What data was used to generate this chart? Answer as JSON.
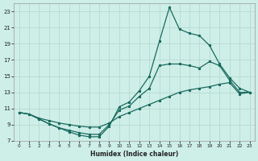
{
  "xlabel": "Humidex (Indice chaleur)",
  "bg_color": "#ceeee8",
  "grid_color": "#b8d8d2",
  "line_color": "#1a6b5e",
  "xlim": [
    -0.5,
    23.5
  ],
  "ylim": [
    7,
    24
  ],
  "yticks": [
    7,
    9,
    11,
    13,
    15,
    17,
    19,
    21,
    23
  ],
  "xticks": [
    0,
    1,
    2,
    3,
    4,
    5,
    6,
    7,
    8,
    9,
    10,
    11,
    12,
    13,
    14,
    15,
    16,
    17,
    18,
    19,
    20,
    21,
    22,
    23
  ],
  "s1_x": [
    0,
    1,
    2,
    3,
    4,
    5,
    6,
    7,
    8,
    9,
    10,
    11,
    12,
    13,
    14,
    15,
    16,
    17,
    18,
    19,
    20,
    21,
    22,
    23
  ],
  "s1_y": [
    10.5,
    10.3,
    9.7,
    9.1,
    8.6,
    8.1,
    7.7,
    7.5,
    7.5,
    8.8,
    11.2,
    11.8,
    13.2,
    15.0,
    19.3,
    23.5,
    20.8,
    20.3,
    20.0,
    18.8,
    16.5,
    14.8,
    13.5,
    13.0
  ],
  "s2_x": [
    0,
    1,
    2,
    3,
    4,
    5,
    6,
    7,
    8,
    9,
    10,
    11,
    12,
    13,
    14,
    15,
    16,
    17,
    18,
    19,
    20,
    21,
    22,
    23
  ],
  "s2_y": [
    10.5,
    10.3,
    9.7,
    9.1,
    8.6,
    8.3,
    8.0,
    7.8,
    7.8,
    9.0,
    10.8,
    11.3,
    12.5,
    13.5,
    16.3,
    16.5,
    16.5,
    16.3,
    16.0,
    16.8,
    16.3,
    14.5,
    13.0,
    13.0
  ],
  "s3_x": [
    0,
    1,
    2,
    3,
    4,
    5,
    6,
    7,
    8,
    9,
    10,
    11,
    12,
    13,
    14,
    15,
    16,
    17,
    18,
    19,
    20,
    21,
    22,
    23
  ],
  "s3_y": [
    10.5,
    10.3,
    9.8,
    9.5,
    9.2,
    9.0,
    8.8,
    8.7,
    8.7,
    9.2,
    10.0,
    10.5,
    11.0,
    11.5,
    12.0,
    12.5,
    13.0,
    13.3,
    13.5,
    13.7,
    14.0,
    14.2,
    12.8,
    13.0
  ]
}
